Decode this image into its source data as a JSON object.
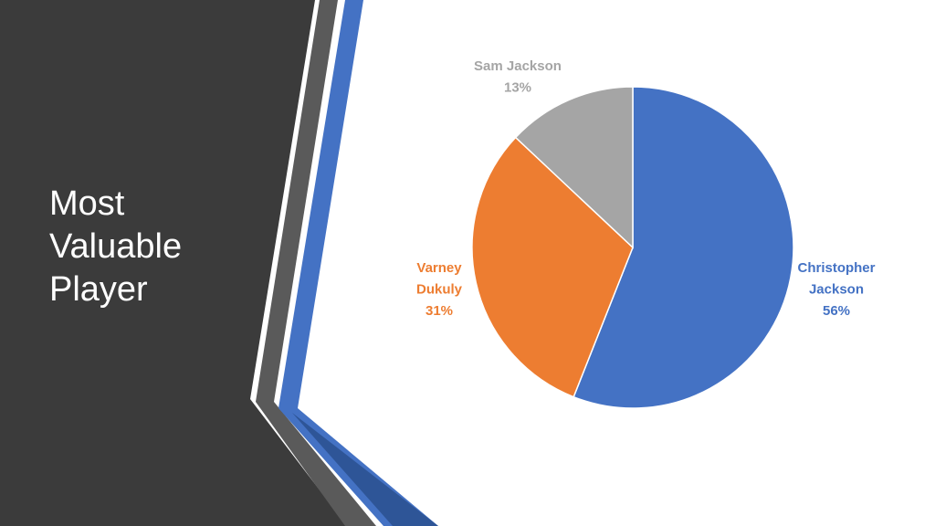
{
  "slide": {
    "title_lines": [
      "Most",
      "Valuable",
      "Player"
    ]
  },
  "theme": {
    "panel_color": "#3b3b3b",
    "accent_gray": "#5a5a5a",
    "accent_blue": "#4472c4",
    "accent_dark_blue": "#2e5597"
  },
  "chart_data": {
    "type": "pie",
    "title": "",
    "slices": [
      {
        "name": "Christopher Jackson",
        "label_lines": [
          "Christopher",
          "Jackson",
          "56%"
        ],
        "value": 56,
        "color": "#4472c4"
      },
      {
        "name": "Varney Dukuly",
        "label_lines": [
          "Varney",
          "Dukuly",
          "31%"
        ],
        "value": 31,
        "color": "#ed7d31"
      },
      {
        "name": "Sam Jackson",
        "label_lines": [
          "Sam Jackson",
          "13%"
        ],
        "value": 13,
        "color": "#a5a5a5"
      }
    ],
    "start_angle": "12 o'clock",
    "direction": "clockwise",
    "legend": "none",
    "data_labels": "outside"
  }
}
